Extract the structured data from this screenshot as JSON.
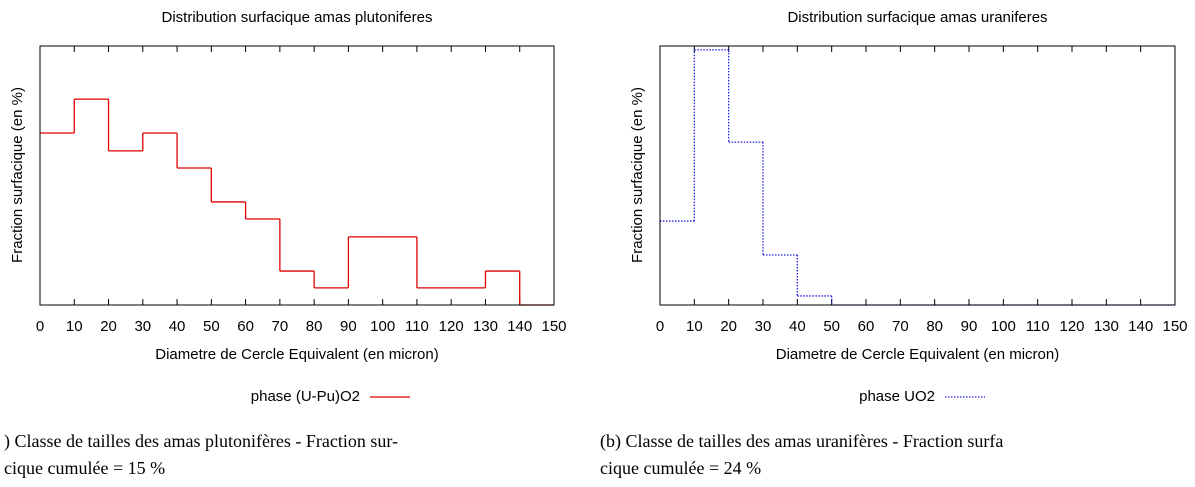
{
  "chart_data": [
    {
      "type": "histogram",
      "title": "Distribution surfacique amas plutoniferes",
      "x_label": "Diametre de Cercle Equivalent (en micron)",
      "y_label": "Fraction surfacique (en %)",
      "bins": [
        0,
        10,
        20,
        30,
        40,
        50,
        60,
        70,
        80,
        90,
        100,
        110,
        120,
        130,
        140,
        150
      ],
      "series": [
        {
          "name": "phase (U-Pu)O2",
          "color": "#e00000",
          "line_style": "solid",
          "values": [
            66.4,
            79.5,
            59.5,
            66.4,
            52.9,
            39.8,
            33.2,
            13.1,
            6.6,
            26.3,
            26.3,
            6.6,
            6.6,
            13.1,
            0
          ]
        }
      ],
      "xlim": [
        0,
        150
      ],
      "xticks": [
        0,
        10,
        20,
        30,
        40,
        50,
        60,
        70,
        80,
        90,
        100,
        110,
        120,
        130,
        140,
        150
      ],
      "ylim": [
        0,
        100
      ]
    },
    {
      "type": "histogram",
      "title": "Distribution surfacique amas uraniferes",
      "x_label": "Diametre de Cercle Equivalent (en micron)",
      "y_label": "Fraction surfacique (en %)",
      "bins": [
        0,
        10,
        20,
        30,
        40,
        50,
        60,
        70,
        80,
        90,
        100,
        110,
        120,
        130,
        140,
        150
      ],
      "series": [
        {
          "name": "phase UO2",
          "color": "#2020e0",
          "line_style": "dotted",
          "values": [
            32.4,
            98.5,
            62.9,
            19.3,
            3.5,
            0,
            0,
            0,
            0,
            0,
            0,
            0,
            0,
            0,
            0
          ]
        }
      ],
      "xlim": [
        0,
        150
      ],
      "xticks": [
        0,
        10,
        20,
        30,
        40,
        50,
        60,
        70,
        80,
        90,
        100,
        110,
        120,
        130,
        140,
        150
      ],
      "ylim": [
        0,
        100
      ]
    }
  ],
  "captions": [
    [
      ") Classe de tailles des amas plutonifères - Fraction sur-",
      "cique cumulée = 15 %"
    ],
    [
      "(b) Classe de tailles des amas uranifères - Fraction surfa",
      "cique cumulée = 24 %"
    ]
  ]
}
